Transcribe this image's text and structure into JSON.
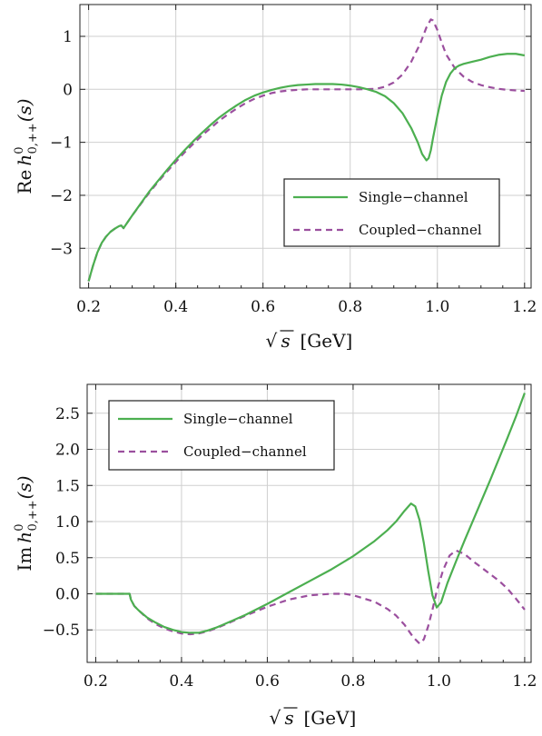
{
  "chart_data": [
    {
      "type": "line",
      "ylabel": "Re h0,++(s)",
      "ylabel_parts": {
        "prefix": "Re",
        "func": "h",
        "sup": "0",
        "sub": "0,++",
        "arg": "(s)"
      },
      "xlabel": "√s [GeV]",
      "xlabel_parts": {
        "root": "s",
        "unit": "[GeV]"
      },
      "xlim": [
        0.18,
        1.215
      ],
      "ylim": [
        -3.75,
        1.6
      ],
      "xticks": [
        "0.2",
        "0.4",
        "0.6",
        "0.8",
        "1.0",
        "1.2"
      ],
      "yticks": [
        "1",
        "0",
        "−1",
        "−2",
        "−3"
      ],
      "grid": true,
      "legend_position": "lower-right",
      "series": [
        {
          "name": "Single−channel",
          "color": "#4caf50",
          "style": "solid",
          "points": [
            [
              0.2,
              -3.62
            ],
            [
              0.21,
              -3.33
            ],
            [
              0.22,
              -3.08
            ],
            [
              0.23,
              -2.9
            ],
            [
              0.24,
              -2.78
            ],
            [
              0.25,
              -2.69
            ],
            [
              0.26,
              -2.63
            ],
            [
              0.27,
              -2.58
            ],
            [
              0.275,
              -2.57
            ],
            [
              0.28,
              -2.62
            ],
            [
              0.29,
              -2.5
            ],
            [
              0.3,
              -2.38
            ],
            [
              0.32,
              -2.15
            ],
            [
              0.34,
              -1.92
            ],
            [
              0.36,
              -1.72
            ],
            [
              0.38,
              -1.52
            ],
            [
              0.4,
              -1.33
            ],
            [
              0.42,
              -1.15
            ],
            [
              0.44,
              -0.98
            ],
            [
              0.46,
              -0.82
            ],
            [
              0.48,
              -0.67
            ],
            [
              0.5,
              -0.53
            ],
            [
              0.52,
              -0.41
            ],
            [
              0.54,
              -0.3
            ],
            [
              0.56,
              -0.2
            ],
            [
              0.58,
              -0.12
            ],
            [
              0.6,
              -0.06
            ],
            [
              0.62,
              -0.01
            ],
            [
              0.64,
              0.03
            ],
            [
              0.66,
              0.06
            ],
            [
              0.68,
              0.08
            ],
            [
              0.7,
              0.09
            ],
            [
              0.72,
              0.1
            ],
            [
              0.74,
              0.1
            ],
            [
              0.76,
              0.1
            ],
            [
              0.78,
              0.09
            ],
            [
              0.8,
              0.07
            ],
            [
              0.82,
              0.04
            ],
            [
              0.84,
              0.0
            ],
            [
              0.86,
              -0.05
            ],
            [
              0.88,
              -0.13
            ],
            [
              0.9,
              -0.26
            ],
            [
              0.92,
              -0.45
            ],
            [
              0.94,
              -0.73
            ],
            [
              0.955,
              -1.0
            ],
            [
              0.965,
              -1.22
            ],
            [
              0.975,
              -1.34
            ],
            [
              0.98,
              -1.3
            ],
            [
              0.985,
              -1.15
            ],
            [
              0.99,
              -0.92
            ],
            [
              1.0,
              -0.5
            ],
            [
              1.01,
              -0.12
            ],
            [
              1.02,
              0.14
            ],
            [
              1.03,
              0.3
            ],
            [
              1.04,
              0.4
            ],
            [
              1.05,
              0.45
            ],
            [
              1.06,
              0.48
            ],
            [
              1.08,
              0.52
            ],
            [
              1.1,
              0.56
            ],
            [
              1.12,
              0.61
            ],
            [
              1.14,
              0.65
            ],
            [
              1.16,
              0.67
            ],
            [
              1.18,
              0.67
            ],
            [
              1.2,
              0.64
            ]
          ]
        },
        {
          "name": "Coupled−channel",
          "color": "#9b4f9e",
          "style": "dashed",
          "points": [
            [
              0.2,
              -3.62
            ],
            [
              0.21,
              -3.33
            ],
            [
              0.22,
              -3.08
            ],
            [
              0.23,
              -2.9
            ],
            [
              0.24,
              -2.78
            ],
            [
              0.25,
              -2.69
            ],
            [
              0.26,
              -2.63
            ],
            [
              0.27,
              -2.58
            ],
            [
              0.275,
              -2.57
            ],
            [
              0.28,
              -2.62
            ],
            [
              0.29,
              -2.5
            ],
            [
              0.3,
              -2.38
            ],
            [
              0.32,
              -2.16
            ],
            [
              0.34,
              -1.94
            ],
            [
              0.36,
              -1.74
            ],
            [
              0.38,
              -1.55
            ],
            [
              0.4,
              -1.37
            ],
            [
              0.42,
              -1.19
            ],
            [
              0.44,
              -1.03
            ],
            [
              0.46,
              -0.87
            ],
            [
              0.48,
              -0.73
            ],
            [
              0.5,
              -0.59
            ],
            [
              0.52,
              -0.47
            ],
            [
              0.54,
              -0.36
            ],
            [
              0.56,
              -0.26
            ],
            [
              0.58,
              -0.18
            ],
            [
              0.6,
              -0.12
            ],
            [
              0.62,
              -0.07
            ],
            [
              0.64,
              -0.04
            ],
            [
              0.66,
              -0.02
            ],
            [
              0.68,
              -0.01
            ],
            [
              0.7,
              0.0
            ],
            [
              0.74,
              0.0
            ],
            [
              0.78,
              0.0
            ],
            [
              0.82,
              0.0
            ],
            [
              0.86,
              0.01
            ],
            [
              0.88,
              0.05
            ],
            [
              0.9,
              0.13
            ],
            [
              0.92,
              0.28
            ],
            [
              0.94,
              0.52
            ],
            [
              0.96,
              0.85
            ],
            [
              0.975,
              1.17
            ],
            [
              0.985,
              1.32
            ],
            [
              0.99,
              1.3
            ],
            [
              1.0,
              1.12
            ],
            [
              1.01,
              0.88
            ],
            [
              1.02,
              0.66
            ],
            [
              1.04,
              0.4
            ],
            [
              1.06,
              0.24
            ],
            [
              1.08,
              0.14
            ],
            [
              1.1,
              0.08
            ],
            [
              1.12,
              0.04
            ],
            [
              1.14,
              0.01
            ],
            [
              1.16,
              -0.01
            ],
            [
              1.18,
              -0.02
            ],
            [
              1.2,
              -0.03
            ]
          ]
        }
      ]
    },
    {
      "type": "line",
      "ylabel": "Im h0,++(s)",
      "ylabel_parts": {
        "prefix": "Im",
        "func": "h",
        "sup": "0",
        "sub": "0,++",
        "arg": "(s)"
      },
      "xlabel": "√s [GeV]",
      "xlabel_parts": {
        "root": "s",
        "unit": "[GeV]"
      },
      "xlim": [
        0.18,
        1.215
      ],
      "ylim": [
        -0.95,
        2.9
      ],
      "xticks": [
        "0.2",
        "0.4",
        "0.6",
        "0.8",
        "1.0",
        "1.2"
      ],
      "yticks": [
        "2.5",
        "2.0",
        "1.5",
        "1.0",
        "0.5",
        "0.0",
        "−0.5"
      ],
      "grid": true,
      "legend_position": "top-left",
      "series": [
        {
          "name": "Single−channel",
          "color": "#4caf50",
          "style": "solid",
          "points": [
            [
              0.2,
              0.0
            ],
            [
              0.26,
              0.0
            ],
            [
              0.279,
              0.0
            ],
            [
              0.282,
              -0.08
            ],
            [
              0.29,
              -0.17
            ],
            [
              0.3,
              -0.23
            ],
            [
              0.32,
              -0.33
            ],
            [
              0.34,
              -0.4
            ],
            [
              0.36,
              -0.46
            ],
            [
              0.38,
              -0.5
            ],
            [
              0.4,
              -0.53
            ],
            [
              0.42,
              -0.54
            ],
            [
              0.44,
              -0.54
            ],
            [
              0.46,
              -0.51
            ],
            [
              0.48,
              -0.47
            ],
            [
              0.5,
              -0.42
            ],
            [
              0.55,
              -0.29
            ],
            [
              0.6,
              -0.14
            ],
            [
              0.65,
              0.02
            ],
            [
              0.7,
              0.18
            ],
            [
              0.75,
              0.34
            ],
            [
              0.8,
              0.52
            ],
            [
              0.85,
              0.73
            ],
            [
              0.88,
              0.88
            ],
            [
              0.9,
              1.0
            ],
            [
              0.92,
              1.15
            ],
            [
              0.935,
              1.25
            ],
            [
              0.945,
              1.21
            ],
            [
              0.955,
              1.02
            ],
            [
              0.965,
              0.7
            ],
            [
              0.975,
              0.32
            ],
            [
              0.985,
              -0.02
            ],
            [
              0.995,
              -0.19
            ],
            [
              1.005,
              -0.12
            ],
            [
              1.02,
              0.15
            ],
            [
              1.04,
              0.45
            ],
            [
              1.06,
              0.74
            ],
            [
              1.08,
              1.02
            ],
            [
              1.1,
              1.3
            ],
            [
              1.12,
              1.58
            ],
            [
              1.14,
              1.87
            ],
            [
              1.16,
              2.16
            ],
            [
              1.18,
              2.46
            ],
            [
              1.2,
              2.78
            ]
          ]
        },
        {
          "name": "Coupled−channel",
          "color": "#9b4f9e",
          "style": "dashed",
          "points": [
            [
              0.2,
              0.0
            ],
            [
              0.26,
              0.0
            ],
            [
              0.279,
              0.0
            ],
            [
              0.282,
              -0.08
            ],
            [
              0.29,
              -0.17
            ],
            [
              0.3,
              -0.23
            ],
            [
              0.32,
              -0.34
            ],
            [
              0.34,
              -0.42
            ],
            [
              0.36,
              -0.48
            ],
            [
              0.38,
              -0.52
            ],
            [
              0.4,
              -0.55
            ],
            [
              0.42,
              -0.56
            ],
            [
              0.44,
              -0.55
            ],
            [
              0.46,
              -0.52
            ],
            [
              0.48,
              -0.48
            ],
            [
              0.5,
              -0.43
            ],
            [
              0.55,
              -0.3
            ],
            [
              0.6,
              -0.18
            ],
            [
              0.65,
              -0.08
            ],
            [
              0.7,
              -0.02
            ],
            [
              0.75,
              0.0
            ],
            [
              0.78,
              0.0
            ],
            [
              0.8,
              -0.02
            ],
            [
              0.85,
              -0.11
            ],
            [
              0.88,
              -0.21
            ],
            [
              0.9,
              -0.3
            ],
            [
              0.92,
              -0.43
            ],
            [
              0.94,
              -0.6
            ],
            [
              0.955,
              -0.69
            ],
            [
              0.965,
              -0.63
            ],
            [
              0.975,
              -0.45
            ],
            [
              0.985,
              -0.22
            ],
            [
              0.995,
              0.04
            ],
            [
              1.01,
              0.33
            ],
            [
              1.025,
              0.53
            ],
            [
              1.04,
              0.6
            ],
            [
              1.06,
              0.55
            ],
            [
              1.08,
              0.45
            ],
            [
              1.1,
              0.36
            ],
            [
              1.12,
              0.27
            ],
            [
              1.14,
              0.18
            ],
            [
              1.16,
              0.07
            ],
            [
              1.18,
              -0.07
            ],
            [
              1.2,
              -0.22
            ]
          ]
        }
      ]
    }
  ]
}
